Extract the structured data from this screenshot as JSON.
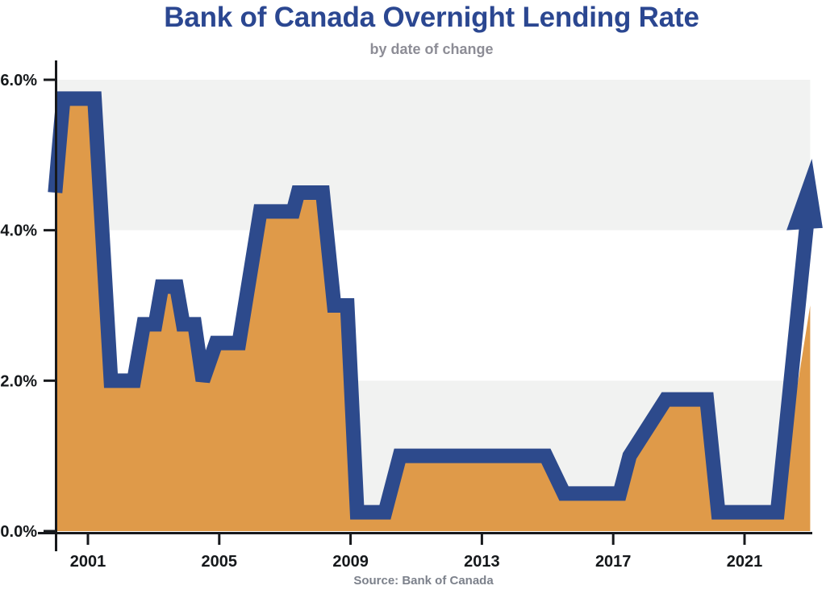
{
  "chart_data": {
    "type": "area",
    "title": "Bank of Canada Overnight Lending Rate",
    "subtitle": "by date of change",
    "source": "Source: Bank of Canada",
    "xlabel": "",
    "ylabel": "",
    "x_domain": [
      2000,
      2023
    ],
    "y_domain": [
      0,
      6
    ],
    "x_ticks": [
      {
        "value": 2001,
        "label": "2001"
      },
      {
        "value": 2005,
        "label": "2005"
      },
      {
        "value": 2009,
        "label": "2009"
      },
      {
        "value": 2013,
        "label": "2013"
      },
      {
        "value": 2017,
        "label": "2017"
      },
      {
        "value": 2021,
        "label": "2021"
      }
    ],
    "y_ticks": [
      {
        "value": 0,
        "label": "0.0%"
      },
      {
        "value": 2,
        "label": "2.0%"
      },
      {
        "value": 4,
        "label": "4.0%"
      },
      {
        "value": 6,
        "label": "6.0%"
      }
    ],
    "grid_bands": [
      [
        0,
        2
      ],
      [
        4,
        6
      ]
    ],
    "legend": "none",
    "series": [
      {
        "name": "Overnight lending rate (%)",
        "points": [
          [
            2000.0,
            4.5
          ],
          [
            2000.25,
            5.75
          ],
          [
            2001.2,
            5.75
          ],
          [
            2001.7,
            2.0
          ],
          [
            2002.4,
            2.0
          ],
          [
            2002.7,
            2.75
          ],
          [
            2003.05,
            2.75
          ],
          [
            2003.25,
            3.25
          ],
          [
            2003.7,
            3.25
          ],
          [
            2003.9,
            2.75
          ],
          [
            2004.25,
            2.75
          ],
          [
            2004.5,
            2.0
          ],
          [
            2004.9,
            2.5
          ],
          [
            2005.6,
            2.5
          ],
          [
            2006.25,
            4.25
          ],
          [
            2007.25,
            4.25
          ],
          [
            2007.4,
            4.5
          ],
          [
            2008.15,
            4.5
          ],
          [
            2008.5,
            3.0
          ],
          [
            2008.9,
            3.0
          ],
          [
            2009.2,
            0.25
          ],
          [
            2010.05,
            0.25
          ],
          [
            2010.5,
            1.0
          ],
          [
            2014.95,
            1.0
          ],
          [
            2015.5,
            0.5
          ],
          [
            2017.2,
            0.5
          ],
          [
            2017.5,
            1.0
          ],
          [
            2018.6,
            1.75
          ],
          [
            2019.85,
            1.75
          ],
          [
            2020.2,
            0.25
          ],
          [
            2022.0,
            0.25
          ],
          [
            2022.9,
            4.1
          ]
        ]
      }
    ],
    "annotation_arrow": {
      "tip": [
        2023.05,
        4.95
      ],
      "wing_left": [
        2022.28,
        4.0
      ],
      "wing_right": [
        2023.38,
        4.03
      ]
    },
    "fill_right_edge_top": 3.0,
    "colors": {
      "line": "#2d4a8c",
      "fill": "#df9a49",
      "band": "#f1f2f1",
      "axis": "#17191c",
      "tick_label": "#15181b",
      "title": "#2b4791",
      "subtitle": "#8d8d96",
      "source": "#7c818b"
    }
  }
}
